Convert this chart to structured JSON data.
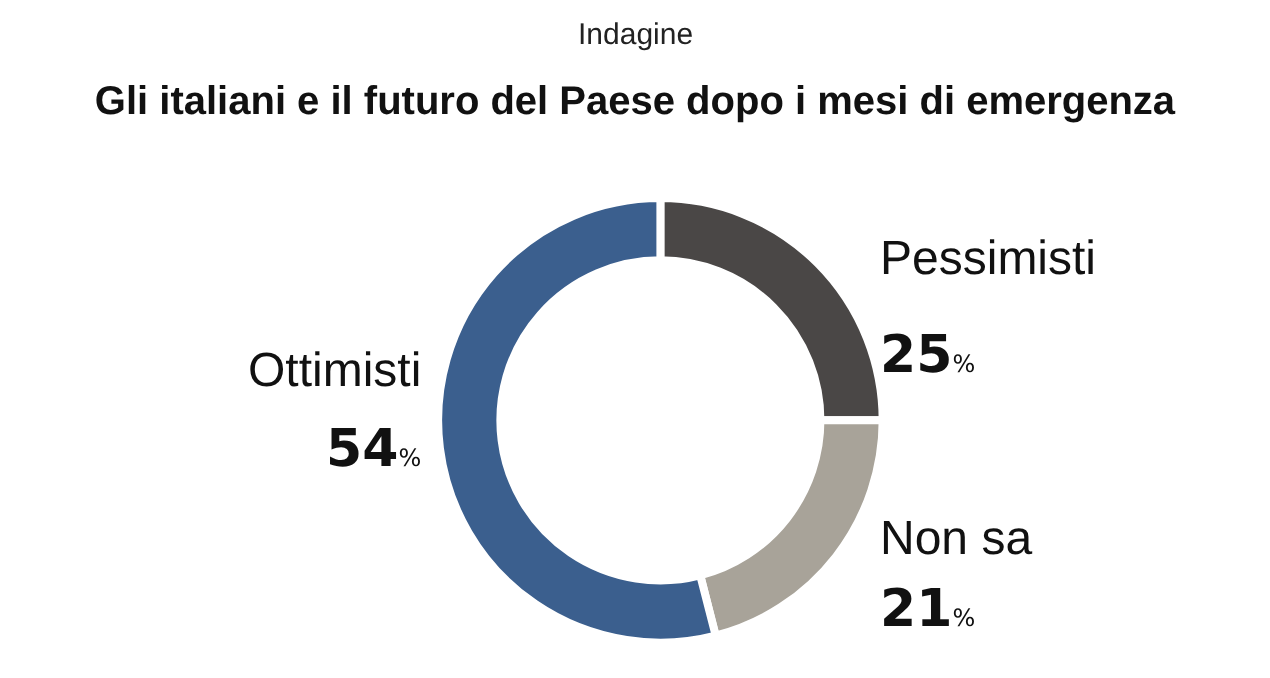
{
  "chart_data": {
    "type": "donut",
    "title": "Gli italiani e il futuro del Paese dopo i mesi di emergenza",
    "subtitle": "Indagine",
    "categories": [
      "Pessimisti",
      "Non sa",
      "Ottimisti"
    ],
    "values": [
      25,
      21,
      54
    ],
    "value_labels": [
      "25%",
      "21%",
      "54%"
    ],
    "colors": [
      "#4a4746",
      "#a8a399",
      "#3b5f8e"
    ],
    "legend": false
  }
}
